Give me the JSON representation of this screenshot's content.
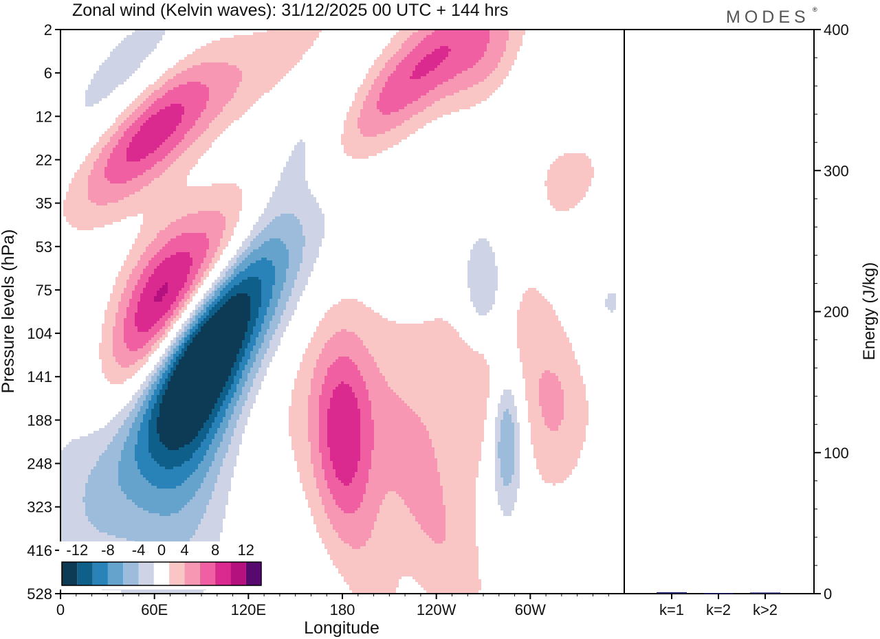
{
  "chart_data": {
    "type": "heatmap",
    "title": "Zonal wind (Kelvin waves):  31/12/2025  00 UTC  + 144 hrs",
    "logo": "MODES",
    "logo_mark": "®",
    "xlabel": "Longitude",
    "ylabel": "Pressure levels (hPa)",
    "x_ticks": [
      "0",
      "60E",
      "120E",
      "180",
      "120W",
      "60W"
    ],
    "y_ticks": [
      "2",
      "6",
      "12",
      "22",
      "35",
      "53",
      "75",
      "104",
      "141",
      "188",
      "248",
      "323",
      "416",
      "528"
    ],
    "colorbar": {
      "tick_labels": [
        "-12",
        "-8",
        "-4",
        "0",
        "4",
        "8",
        "12"
      ],
      "levels": [
        -14,
        -12,
        -10,
        -8,
        -6,
        -4,
        -2,
        2,
        4,
        6,
        8,
        10,
        12,
        14
      ],
      "colors": [
        "#0d3b55",
        "#0e5f8a",
        "#2a83b8",
        "#66a3cc",
        "#9dbcdc",
        "#cfd3e6",
        "#ffffff",
        "#fac5c5",
        "#f797b3",
        "#ef5fa1",
        "#db2a8f",
        "#b4117f",
        "#560a6e"
      ]
    },
    "anomalies": [
      {
        "lon": 100,
        "lev": 6.8,
        "width": 38,
        "height": 1.5,
        "tilt": -0.42,
        "value": -15
      },
      {
        "lon": 88,
        "lev": 8.0,
        "width": 22,
        "height": 2.0,
        "tilt": -0.3,
        "value": -6
      },
      {
        "lon": 86,
        "lev": 5.8,
        "width": 32,
        "height": 1.0,
        "tilt": -0.45,
        "value": 11
      },
      {
        "lon": 60,
        "lev": 5.9,
        "width": 22,
        "height": 1.0,
        "tilt": -0.4,
        "value": 7
      },
      {
        "lon": 110,
        "lev": 5.1,
        "width": 45,
        "height": 0.9,
        "tilt": -0.4,
        "value": 4.5
      },
      {
        "lon": 55,
        "lev": 2.3,
        "width": 32,
        "height": 0.9,
        "tilt": -0.3,
        "value": 9
      },
      {
        "lon": 120,
        "lev": 1.1,
        "width": 55,
        "height": 0.7,
        "tilt": -0.25,
        "value": 3
      },
      {
        "lon": 45,
        "lev": 1.2,
        "width": 35,
        "height": 1.0,
        "tilt": -0.3,
        "value": -4
      },
      {
        "lon": 150,
        "lev": 3.0,
        "width": 30,
        "height": 0.8,
        "tilt": -0.4,
        "value": -4
      },
      {
        "lon": 230,
        "lev": 0.9,
        "width": 40,
        "height": 0.8,
        "tilt": -0.3,
        "value": 8
      },
      {
        "lon": 275,
        "lev": 0.7,
        "width": 20,
        "height": 0.7,
        "tilt": -0.2,
        "value": 4
      },
      {
        "lon": 270,
        "lev": 6.0,
        "width": 10,
        "height": 1.0,
        "tilt": 0,
        "value": -6
      },
      {
        "lon": 285,
        "lev": 9.3,
        "width": 8,
        "height": 1.3,
        "tilt": 0,
        "value": -9
      },
      {
        "lon": 180,
        "lev": 9.3,
        "width": 13,
        "height": 1.6,
        "tilt": 0,
        "value": 6
      },
      {
        "lon": 225,
        "lev": 8.5,
        "width": 90,
        "height": 1.8,
        "tilt": 0,
        "value": 3
      },
      {
        "lon": 195,
        "lev": 12.0,
        "width": 20,
        "height": 1.8,
        "tilt": 0.8,
        "value": 2.5
      },
      {
        "lon": 240,
        "lev": 11.6,
        "width": 25,
        "height": 1.4,
        "tilt": 0.5,
        "value": 3.5
      },
      {
        "lon": 15,
        "lev": 10.5,
        "width": 25,
        "height": 2.0,
        "tilt": 0,
        "value": -3
      },
      {
        "lon": 75,
        "lev": 11.0,
        "width": 25,
        "height": 2.5,
        "tilt": 0,
        "value": -3
      },
      {
        "lon": 325,
        "lev": 2.8,
        "width": 30,
        "height": 2.0,
        "tilt": 0,
        "value": 2.5
      },
      {
        "lon": 315,
        "lev": 1.0,
        "width": 25,
        "height": 1.0,
        "tilt": 0,
        "value": -3
      },
      {
        "lon": 280,
        "lev": 7.7,
        "width": 20,
        "height": 1.5,
        "tilt": 0,
        "value": 2.5
      },
      {
        "lon": 318,
        "lev": 8.8,
        "width": 12,
        "height": 1.3,
        "tilt": 0,
        "value": 2.2
      },
      {
        "lon": 350,
        "lev": 6.3,
        "width": 15,
        "height": 1.0,
        "tilt": 0,
        "value": -3
      }
    ],
    "energy_panel": {
      "ylabel": "Energy (J/kg)",
      "y_ticks": [
        "0",
        "100",
        "200",
        "300",
        "400"
      ],
      "ylim": [
        0,
        400
      ],
      "categories": [
        "k=1",
        "k=2",
        "k>2"
      ],
      "values": [
        1.0,
        0.5,
        0.8
      ],
      "bar_color": "#1a1a66"
    }
  }
}
